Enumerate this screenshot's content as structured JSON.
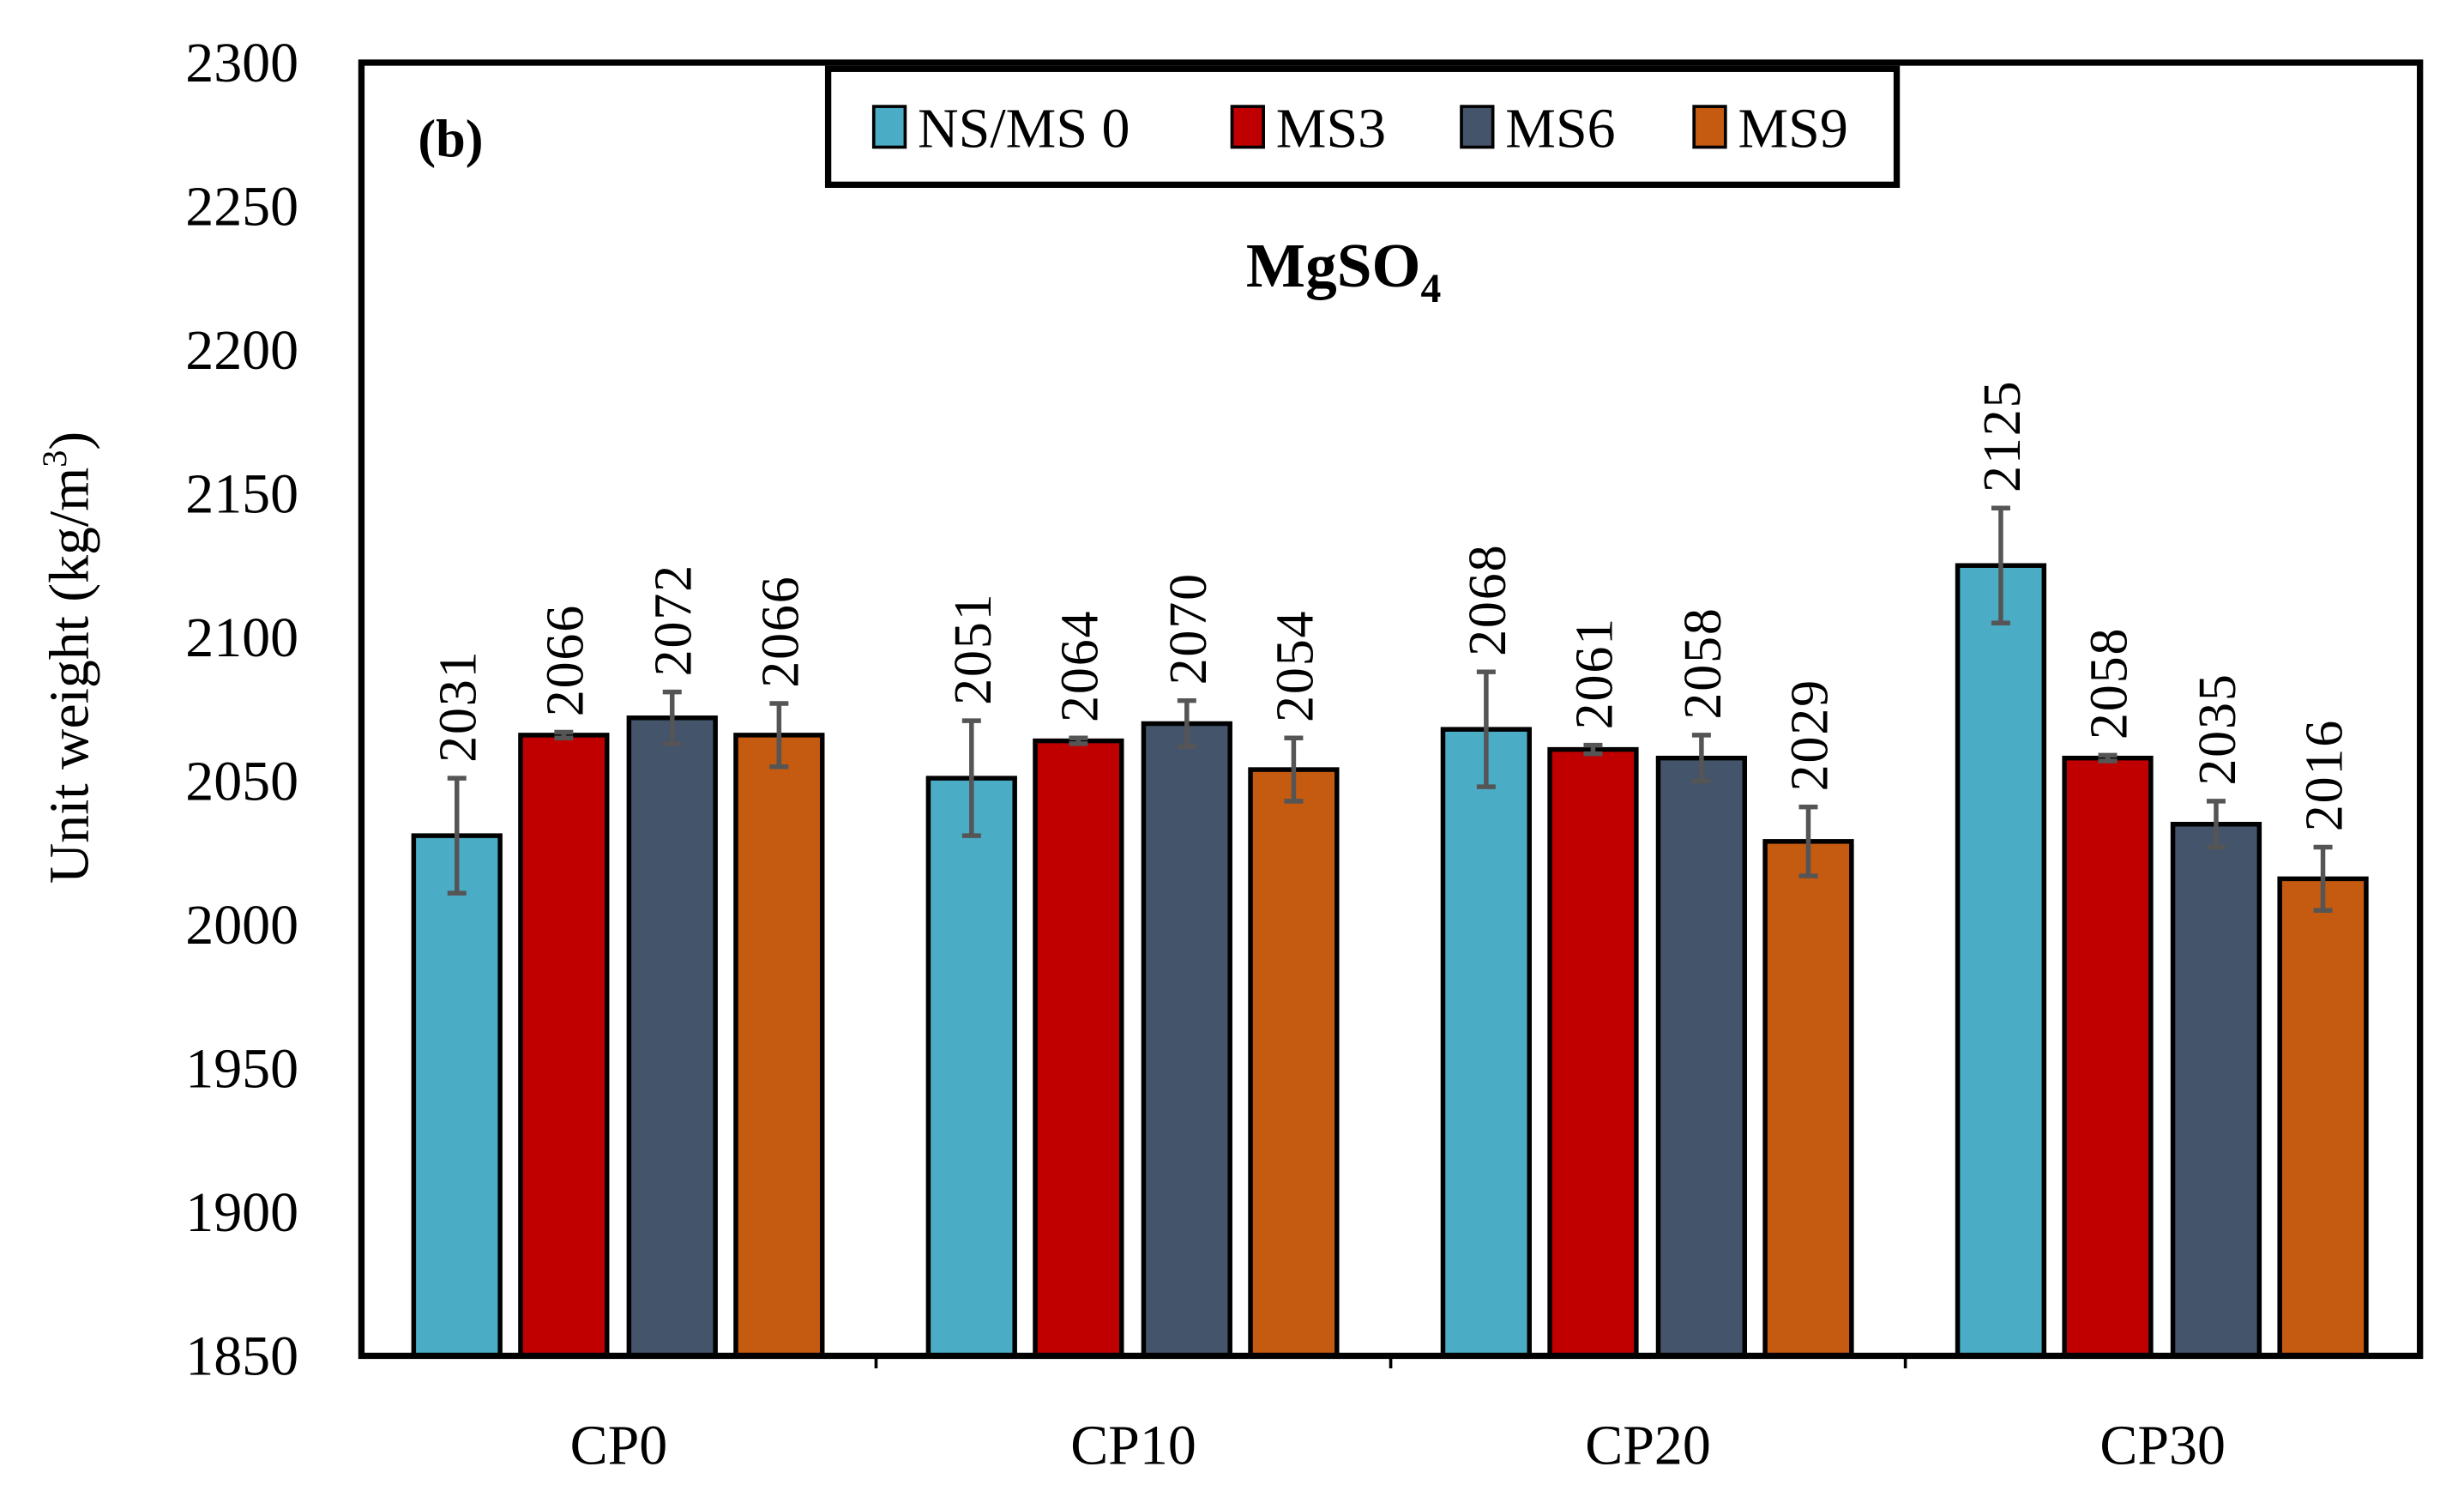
{
  "chart_data": {
    "type": "bar",
    "panel_label": "(b)",
    "title": "MgSO",
    "title_subscript": "4",
    "ylabel": "Unit weight (kg/m",
    "ylabel_superscript": "3",
    "ylabel_close": ")",
    "xlabel": "",
    "ylim": [
      1850,
      2300
    ],
    "yticks": [
      1850,
      1900,
      1950,
      2000,
      2050,
      2100,
      2150,
      2200,
      2250,
      2300
    ],
    "categories": [
      "CP0",
      "CP10",
      "CP20",
      "CP30"
    ],
    "legend_position": "top-center",
    "grid": false,
    "series": [
      {
        "name": "NS/MS 0",
        "color": "#4BACC6",
        "values": [
          2031,
          2051,
          2068,
          2125
        ],
        "errors": [
          20,
          20,
          20,
          20
        ]
      },
      {
        "name": "MS3",
        "color": "#C00000",
        "values": [
          2066,
          2064,
          2061,
          2058
        ],
        "errors": [
          1,
          1,
          1.5,
          1
        ]
      },
      {
        "name": "MS6",
        "color": "#44546A",
        "values": [
          2072,
          2070,
          2058,
          2035
        ],
        "errors": [
          9,
          8,
          8,
          8
        ]
      },
      {
        "name": "MS9",
        "color": "#C55A11",
        "values": [
          2066,
          2054,
          2029,
          2016
        ],
        "errors": [
          11,
          11,
          12,
          11
        ]
      }
    ]
  }
}
